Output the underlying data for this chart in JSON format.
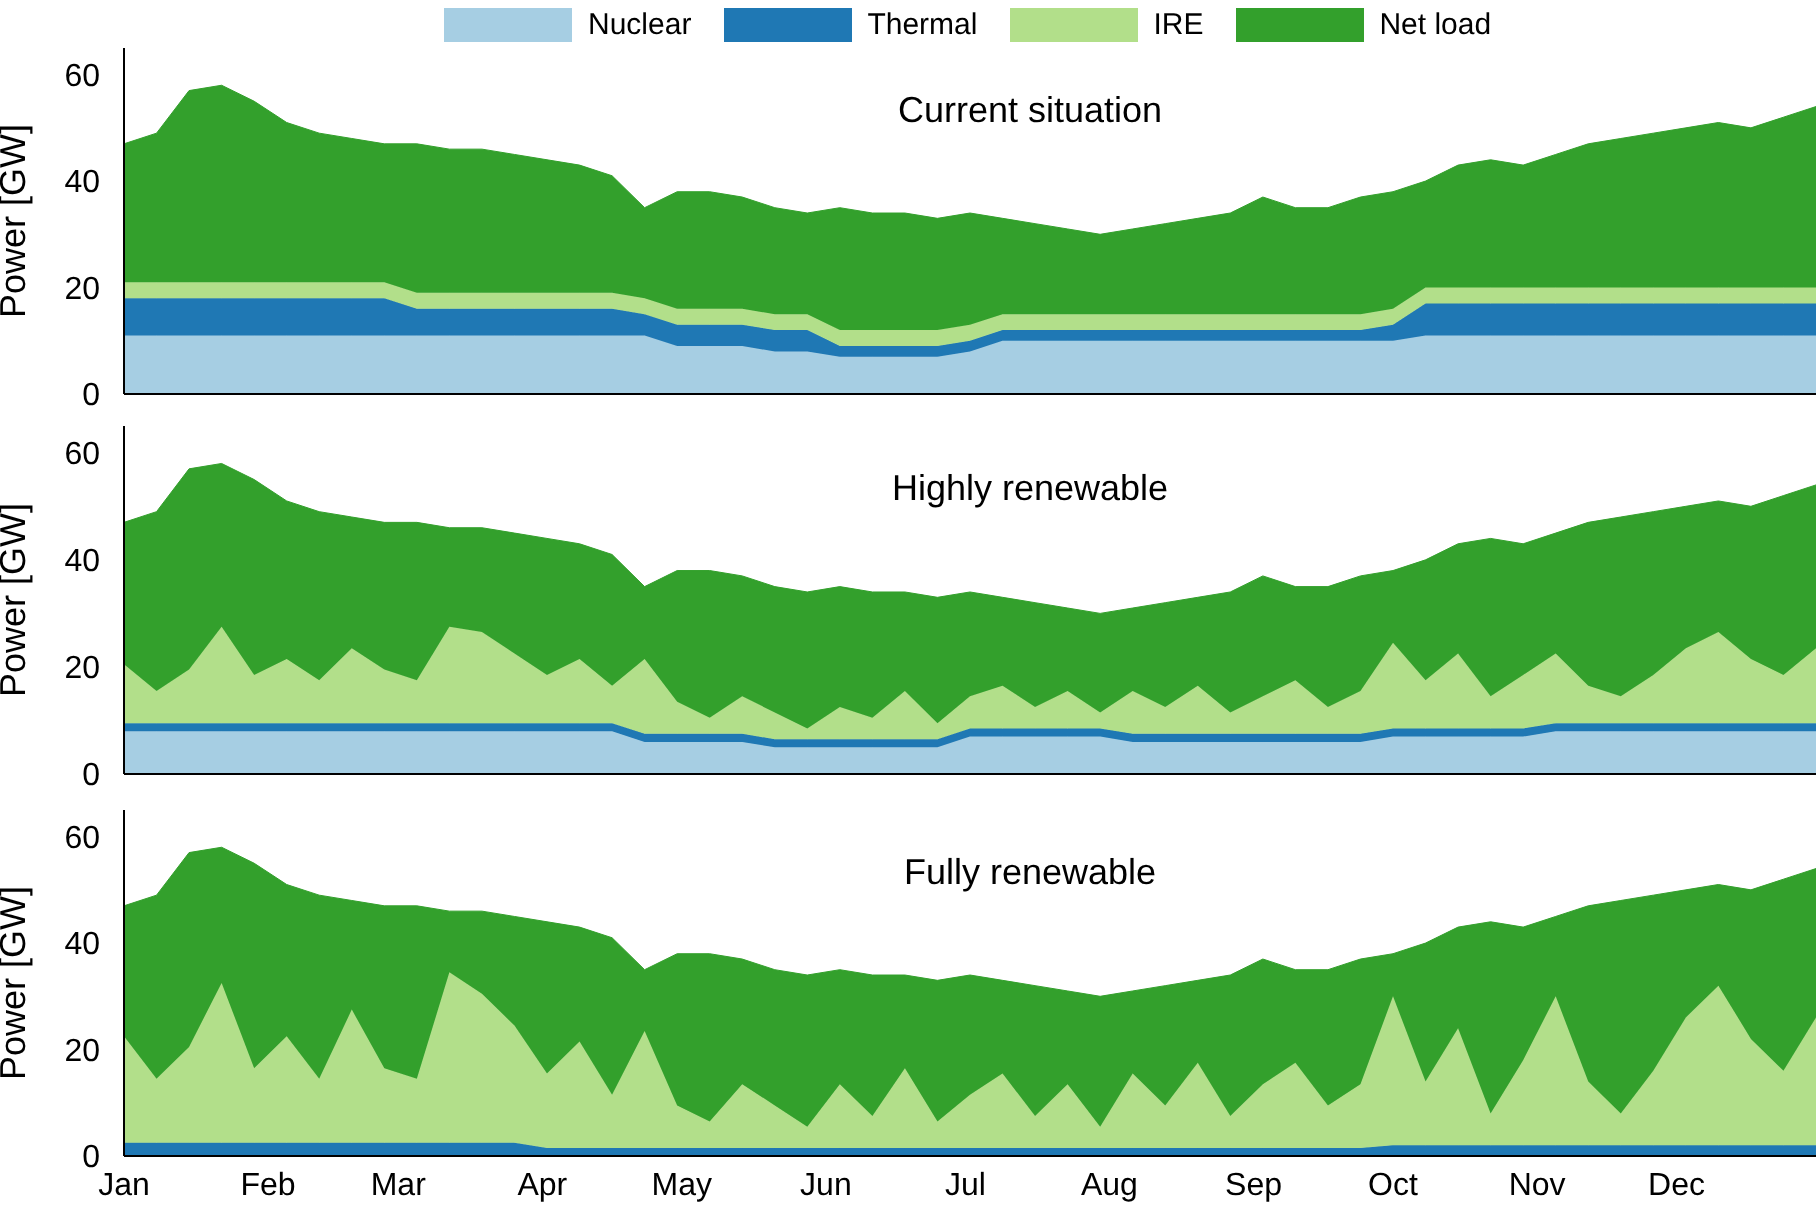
{
  "chart_data": [
    {
      "type": "area",
      "title": "Current situation",
      "ylabel": "Power [GW]",
      "stacked": true,
      "legend": "top",
      "tick_labels": "y",
      "x": [
        "--01-01",
        "--01-08",
        "--01-15",
        "--01-22",
        "--01-29",
        "--02-05",
        "--02-12",
        "--02-19",
        "--02-26",
        "--03-05",
        "--03-12",
        "--03-19",
        "--03-26",
        "--04-02",
        "--04-09",
        "--04-16",
        "--04-23",
        "--04-30",
        "--05-07",
        "--05-14",
        "--05-21",
        "--05-28",
        "--06-04",
        "--06-11",
        "--06-18",
        "--06-25",
        "--07-02",
        "--07-09",
        "--07-16",
        "--07-23",
        "--07-30",
        "--08-06",
        "--08-13",
        "--08-20",
        "--08-27",
        "--09-03",
        "--09-10",
        "--09-17",
        "--09-24",
        "--10-01",
        "--10-08",
        "--10-15",
        "--10-22",
        "--10-29",
        "--11-05",
        "--11-12",
        "--11-19",
        "--11-26",
        "--12-03",
        "--12-10",
        "--12-17",
        "--12-24",
        "--12-31"
      ],
      "xlim": [
        "--01-01",
        "--12-31"
      ],
      "ylim": [
        0,
        65
      ],
      "yticks": [
        0,
        20,
        40,
        60
      ],
      "series": [
        {
          "name": "Nuclear",
          "color": "#a6cee3",
          "values": [
            11,
            11,
            11,
            11,
            11,
            11,
            11,
            11,
            11,
            11,
            11,
            11,
            11,
            11,
            11,
            11,
            11,
            9,
            9,
            9,
            8,
            8,
            7,
            7,
            7,
            7,
            8,
            10,
            10,
            10,
            10,
            10,
            10,
            10,
            10,
            10,
            10,
            10,
            10,
            10,
            11,
            11,
            11,
            11,
            11,
            11,
            11,
            11,
            11,
            11,
            11,
            11,
            11
          ]
        },
        {
          "name": "Thermal",
          "color": "#1f78b4",
          "values": [
            7,
            7,
            7,
            7,
            7,
            7,
            7,
            7,
            7,
            5,
            5,
            5,
            5,
            5,
            5,
            5,
            4,
            4,
            4,
            4,
            4,
            4,
            2,
            2,
            2,
            2,
            2,
            2,
            2,
            2,
            2,
            2,
            2,
            2,
            2,
            2,
            2,
            2,
            2,
            3,
            6,
            6,
            6,
            6,
            6,
            6,
            6,
            6,
            6,
            6,
            6,
            6,
            6
          ]
        },
        {
          "name": "IRE",
          "color": "#b2df8a",
          "values": [
            3,
            3,
            3,
            3,
            3,
            3,
            3,
            3,
            3,
            3,
            3,
            3,
            3,
            3,
            3,
            3,
            3,
            3,
            3,
            3,
            3,
            3,
            3,
            3,
            3,
            3,
            3,
            3,
            3,
            3,
            3,
            3,
            3,
            3,
            3,
            3,
            3,
            3,
            3,
            3,
            3,
            3,
            3,
            3,
            3,
            3,
            3,
            3,
            3,
            3,
            3,
            3,
            3
          ]
        },
        {
          "name": "Net load",
          "color": "#33a02c",
          "values": [
            26,
            28,
            36,
            37,
            34,
            30,
            28,
            27,
            26,
            28,
            27,
            27,
            26,
            25,
            24,
            22,
            17,
            22,
            22,
            21,
            20,
            19,
            23,
            22,
            22,
            21,
            21,
            18,
            17,
            16,
            15,
            16,
            17,
            18,
            19,
            22,
            20,
            20,
            22,
            22,
            20,
            23,
            24,
            23,
            25,
            27,
            28,
            29,
            30,
            31,
            30,
            32,
            34
          ]
        }
      ]
    },
    {
      "type": "area",
      "title": "Highly renewable",
      "ylabel": "Power [GW]",
      "stacked": true,
      "tick_labels": "y",
      "x": [
        "--01-01",
        "--01-08",
        "--01-15",
        "--01-22",
        "--01-29",
        "--02-05",
        "--02-12",
        "--02-19",
        "--02-26",
        "--03-05",
        "--03-12",
        "--03-19",
        "--03-26",
        "--04-02",
        "--04-09",
        "--04-16",
        "--04-23",
        "--04-30",
        "--05-07",
        "--05-14",
        "--05-21",
        "--05-28",
        "--06-04",
        "--06-11",
        "--06-18",
        "--06-25",
        "--07-02",
        "--07-09",
        "--07-16",
        "--07-23",
        "--07-30",
        "--08-06",
        "--08-13",
        "--08-20",
        "--08-27",
        "--09-03",
        "--09-10",
        "--09-17",
        "--09-24",
        "--10-01",
        "--10-08",
        "--10-15",
        "--10-22",
        "--10-29",
        "--11-05",
        "--11-12",
        "--11-19",
        "--11-26",
        "--12-03",
        "--12-10",
        "--12-17",
        "--12-24",
        "--12-31"
      ],
      "xlim": [
        "--01-01",
        "--12-31"
      ],
      "ylim": [
        0,
        65
      ],
      "yticks": [
        0,
        20,
        40,
        60
      ],
      "series": [
        {
          "color": "#a6cee3",
          "values": [
            8,
            8,
            8,
            8,
            8,
            8,
            8,
            8,
            8,
            8,
            8,
            8,
            8,
            8,
            8,
            8,
            6,
            6,
            6,
            6,
            5,
            5,
            5,
            5,
            5,
            5,
            7,
            7,
            7,
            7,
            7,
            6,
            6,
            6,
            6,
            6,
            6,
            6,
            6,
            7,
            7,
            7,
            7,
            7,
            8,
            8,
            8,
            8,
            8,
            8,
            8,
            8,
            8
          ]
        },
        {
          "color": "#1f78b4",
          "values": [
            1.5,
            1.5,
            1.5,
            1.5,
            1.5,
            1.5,
            1.5,
            1.5,
            1.5,
            1.5,
            1.5,
            1.5,
            1.5,
            1.5,
            1.5,
            1.5,
            1.5,
            1.5,
            1.5,
            1.5,
            1.5,
            1.5,
            1.5,
            1.5,
            1.5,
            1.5,
            1.5,
            1.5,
            1.5,
            1.5,
            1.5,
            1.5,
            1.5,
            1.5,
            1.5,
            1.5,
            1.5,
            1.5,
            1.5,
            1.5,
            1.5,
            1.5,
            1.5,
            1.5,
            1.5,
            1.5,
            1.5,
            1.5,
            1.5,
            1.5,
            1.5,
            1.5,
            1.5
          ]
        },
        {
          "color": "#b2df8a",
          "values": [
            11,
            6,
            10,
            18,
            9,
            12,
            8,
            14,
            10,
            8,
            18,
            17,
            13,
            9,
            12,
            7,
            14,
            6,
            3,
            7,
            5,
            2,
            6,
            4,
            9,
            3,
            6,
            8,
            4,
            7,
            3,
            8,
            5,
            9,
            4,
            7,
            10,
            5,
            8,
            16,
            9,
            14,
            6,
            10,
            13,
            7,
            5,
            9,
            14,
            17,
            12,
            9,
            14
          ]
        },
        {
          "color": "#33a02c",
          "values": [
            26.5,
            33.5,
            37.5,
            30.5,
            36.5,
            29.5,
            31.5,
            24.5,
            27.5,
            29.5,
            18.5,
            19.5,
            22.5,
            25.5,
            21.5,
            24.5,
            13.5,
            24.5,
            27.5,
            22.5,
            23.5,
            25.5,
            22.5,
            23.5,
            18.5,
            23.5,
            19.5,
            16.5,
            19.5,
            15.5,
            18.5,
            15.5,
            19.5,
            16.5,
            22.5,
            22.5,
            17.5,
            22.5,
            21.5,
            13.5,
            22.5,
            20.5,
            29.5,
            24.5,
            22.5,
            30.5,
            33.5,
            30.5,
            26.5,
            24.5,
            28.5,
            33.5,
            30.5
          ]
        }
      ]
    },
    {
      "type": "area",
      "title": "Fully renewable",
      "ylabel": "Power [GW]",
      "stacked": true,
      "x": [
        "--01-01",
        "--01-08",
        "--01-15",
        "--01-22",
        "--01-29",
        "--02-05",
        "--02-12",
        "--02-19",
        "--02-26",
        "--03-05",
        "--03-12",
        "--03-19",
        "--03-26",
        "--04-02",
        "--04-09",
        "--04-16",
        "--04-23",
        "--04-30",
        "--05-07",
        "--05-14",
        "--05-21",
        "--05-28",
        "--06-04",
        "--06-11",
        "--06-18",
        "--06-25",
        "--07-02",
        "--07-09",
        "--07-16",
        "--07-23",
        "--07-30",
        "--08-06",
        "--08-13",
        "--08-20",
        "--08-27",
        "--09-03",
        "--09-10",
        "--09-17",
        "--09-24",
        "--10-01",
        "--10-08",
        "--10-15",
        "--10-22",
        "--10-29",
        "--11-05",
        "--11-12",
        "--11-19",
        "--11-26",
        "--12-03",
        "--12-10",
        "--12-17",
        "--12-24",
        "--12-31"
      ],
      "xlim": [
        "--01-01",
        "--12-31"
      ],
      "xticks": [
        {
          "value": "--01-01",
          "label": "Jan"
        },
        {
          "value": "--02-01",
          "label": "Feb"
        },
        {
          "value": "--03-01",
          "label": "Mar"
        },
        {
          "value": "--04-01",
          "label": "Apr"
        },
        {
          "value": "--05-01",
          "label": "May"
        },
        {
          "value": "--06-01",
          "label": "Jun"
        },
        {
          "value": "--07-01",
          "label": "Jul"
        },
        {
          "value": "--08-01",
          "label": "Aug"
        },
        {
          "value": "--09-01",
          "label": "Sep"
        },
        {
          "value": "--10-01",
          "label": "Oct"
        },
        {
          "value": "--11-01",
          "label": "Nov"
        },
        {
          "value": "--12-01",
          "label": "Dec"
        }
      ],
      "ylim": [
        0,
        65
      ],
      "yticks": [
        0,
        20,
        40,
        60
      ],
      "series": [
        {
          "color": "#1f78b4",
          "values": [
            2.5,
            2.5,
            2.5,
            2.5,
            2.5,
            2.5,
            2.5,
            2.5,
            2.5,
            2.5,
            2.5,
            2.5,
            2.5,
            1.5,
            1.5,
            1.5,
            1.5,
            1.5,
            1.5,
            1.5,
            1.5,
            1.5,
            1.5,
            1.5,
            1.5,
            1.5,
            1.5,
            1.5,
            1.5,
            1.5,
            1.5,
            1.5,
            1.5,
            1.5,
            1.5,
            1.5,
            1.5,
            1.5,
            1.5,
            2,
            2,
            2,
            2,
            2,
            2,
            2,
            2,
            2,
            2,
            2,
            2,
            2,
            2
          ]
        },
        {
          "color": "#b2df8a",
          "values": [
            20,
            12,
            18,
            30,
            14,
            20,
            12,
            25,
            14,
            12,
            32,
            28,
            22,
            14,
            20,
            10,
            22,
            8,
            5,
            12,
            8,
            4,
            12,
            6,
            15,
            5,
            10,
            14,
            6,
            12,
            4,
            14,
            8,
            16,
            6,
            12,
            16,
            8,
            12,
            28,
            12,
            22,
            6,
            16,
            28,
            12,
            6,
            14,
            24,
            30,
            20,
            14,
            24
          ]
        },
        {
          "color": "#33a02c",
          "values": [
            24.5,
            34.5,
            36.5,
            25.5,
            38.5,
            28.5,
            34.5,
            20.5,
            30.5,
            32.5,
            11.5,
            15.5,
            20.5,
            28.5,
            21.5,
            29.5,
            11.5,
            28.5,
            31.5,
            23.5,
            25.5,
            28.5,
            21.5,
            26.5,
            17.5,
            26.5,
            22.5,
            17.5,
            24.5,
            17.5,
            24.5,
            15.5,
            22.5,
            15.5,
            26.5,
            23.5,
            17.5,
            25.5,
            23.5,
            8,
            26,
            19,
            36,
            25,
            15,
            33,
            40,
            33,
            24,
            19,
            28,
            36,
            28
          ]
        }
      ]
    }
  ]
}
